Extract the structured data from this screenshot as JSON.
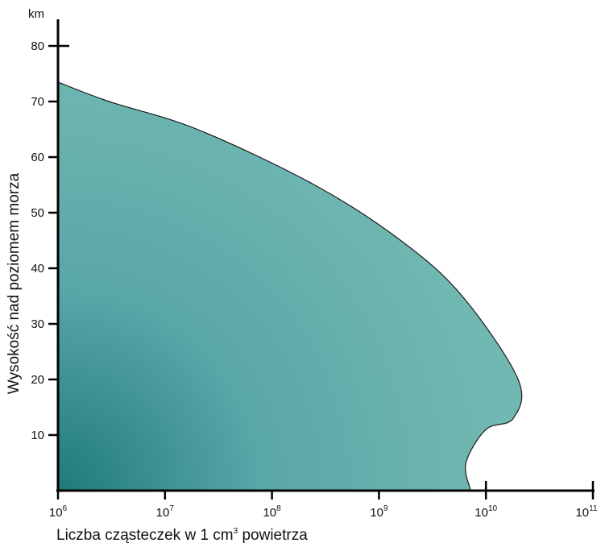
{
  "chart_data": {
    "type": "area",
    "xlabel_main": "Liczba cząsteczek w 1 cm",
    "xlabel_sup": "3",
    "xlabel_tail": " powietrza",
    "ylabel": "Wysokość nad poziomem morza",
    "y_unit": "km",
    "x_scale": "log",
    "xlim": [
      1000000,
      100000000000
    ],
    "ylim": [
      0,
      80
    ],
    "x_ticks": [
      {
        "base": "10",
        "exp": "6"
      },
      {
        "base": "10",
        "exp": "7"
      },
      {
        "base": "10",
        "exp": "8"
      },
      {
        "base": "10",
        "exp": "9"
      },
      {
        "base": "10",
        "exp": "10"
      },
      {
        "base": "10",
        "exp": "11"
      }
    ],
    "y_ticks": [
      "10",
      "20",
      "30",
      "40",
      "50",
      "60",
      "70",
      "80"
    ],
    "grid": false,
    "fill_colors": [
      "#1f7a7c",
      "#5aa7a8",
      "#72b8b2"
    ],
    "series": [
      {
        "boundary": [
          {
            "x": 1000000,
            "y": 73.5
          },
          {
            "x": 3000000,
            "y": 70
          },
          {
            "x": 20000000,
            "y": 65
          },
          {
            "x": 250000000,
            "y": 55
          },
          {
            "x": 1600000000,
            "y": 45
          },
          {
            "x": 6000000000,
            "y": 35
          },
          {
            "x": 20000000000,
            "y": 20
          },
          {
            "x": 18000000000,
            "y": 13
          },
          {
            "x": 10000000000,
            "y": 11
          },
          {
            "x": 6500000000,
            "y": 5
          },
          {
            "x": 7200000000,
            "y": 0
          }
        ]
      }
    ]
  }
}
